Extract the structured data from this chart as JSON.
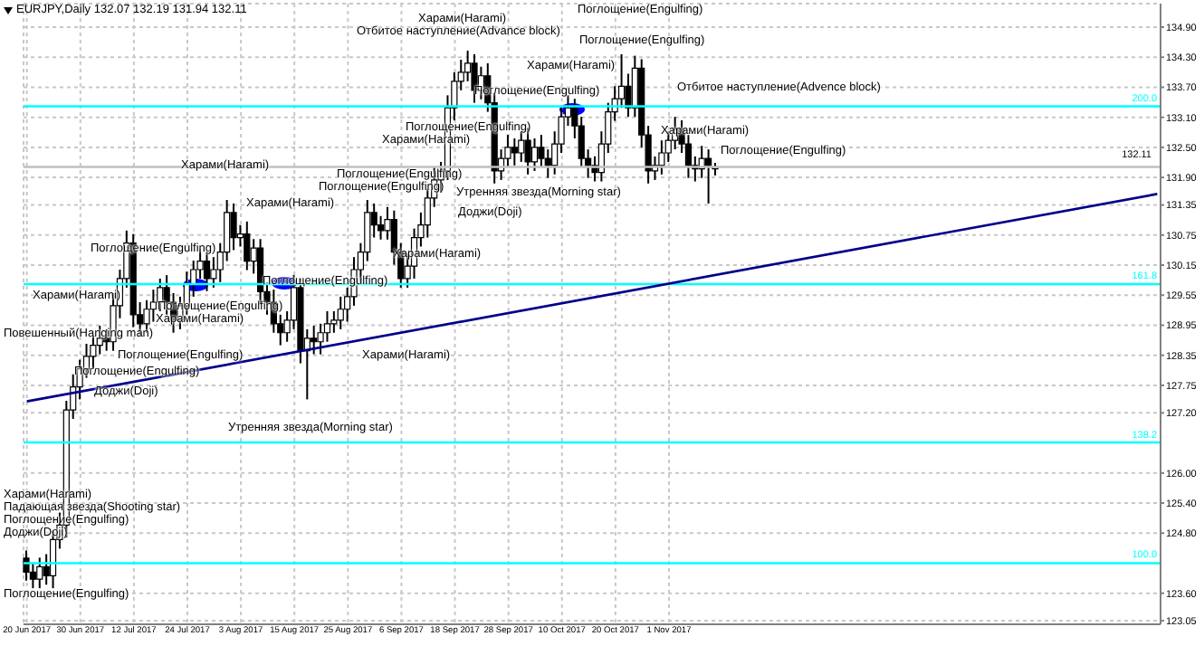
{
  "chart_data": {
    "type": "candlestick",
    "title": "EURJPY,Daily 132.07 132.19 131.94 132.11",
    "color": "#000000",
    "categories": [
      "20 Jun 2017",
      null,
      null,
      null,
      null,
      null,
      null,
      null,
      "30 Jun 2017",
      null,
      null,
      null,
      null,
      null,
      null,
      null,
      "12 Jul 2017",
      null,
      null,
      null,
      null,
      null,
      null,
      null,
      "24 Jul 2017",
      null,
      null,
      null,
      null,
      null,
      null,
      null,
      "3 Aug 2017",
      null,
      null,
      null,
      null,
      null,
      null,
      null,
      "15 Aug 2017",
      null,
      null,
      null,
      null,
      null,
      null,
      null,
      "25 Aug 2017",
      null,
      null,
      null,
      null,
      null,
      null,
      null,
      "6 Sep 2017",
      null,
      null,
      null,
      null,
      null,
      null,
      null,
      "18 Sep 2017",
      null,
      null,
      null,
      null,
      null,
      null,
      null,
      "28 Sep 2017",
      null,
      null,
      null,
      null,
      null,
      null,
      null,
      "10 Oct 2017",
      null,
      null,
      null,
      null,
      null,
      null,
      null,
      "20 Oct 2017",
      null,
      null,
      null,
      null,
      null,
      null,
      null,
      "1 Nov 2017",
      null,
      null,
      null,
      null,
      null,
      null,
      null,
      null,
      null,
      null,
      null,
      null,
      null,
      null,
      null,
      null,
      null,
      null,
      null,
      null,
      null,
      null,
      null,
      null,
      null,
      null,
      null,
      null,
      null,
      null,
      null,
      null,
      null,
      null,
      null,
      null,
      null,
      null,
      null,
      null,
      null,
      null,
      null,
      null,
      null,
      null,
      null,
      null,
      null,
      null,
      null,
      null,
      null,
      null,
      null,
      null,
      null,
      null,
      null,
      null,
      null,
      null,
      null,
      null,
      null,
      null,
      null,
      null,
      null,
      null,
      null,
      null,
      null
    ],
    "ohlc": [
      [
        124.3,
        124.45,
        123.85,
        124.02
      ],
      [
        124.02,
        124.2,
        123.7,
        123.88
      ],
      [
        123.88,
        124.31,
        123.7,
        124.13
      ],
      [
        124.13,
        124.38,
        123.77,
        123.95
      ],
      [
        123.95,
        124.85,
        123.7,
        124.67
      ],
      [
        124.67,
        125.21,
        124.49,
        124.96
      ],
      [
        124.96,
        127.44,
        124.71,
        127.26
      ],
      [
        127.26,
        127.97,
        127.08,
        127.72
      ],
      [
        127.72,
        128.26,
        127.47,
        128.08
      ],
      [
        128.08,
        128.58,
        127.9,
        128.33
      ],
      [
        128.33,
        128.73,
        128.08,
        128.55
      ],
      [
        128.55,
        128.94,
        128.37,
        128.69
      ],
      [
        128.69,
        128.87,
        128.44,
        128.62
      ],
      [
        128.62,
        129.59,
        128.44,
        129.34
      ],
      [
        129.34,
        130.06,
        129.09,
        129.88
      ],
      [
        129.88,
        130.84,
        129.7,
        130.59
      ],
      [
        130.59,
        130.77,
        128.91,
        129.16
      ],
      [
        129.16,
        129.41,
        128.73,
        128.98
      ],
      [
        128.98,
        129.45,
        128.8,
        129.27
      ],
      [
        129.27,
        129.66,
        129.02,
        129.41
      ],
      [
        129.41,
        129.88,
        129.23,
        129.7
      ],
      [
        129.7,
        129.95,
        129.16,
        129.41
      ],
      [
        129.41,
        129.59,
        128.8,
        129.05
      ],
      [
        129.05,
        129.52,
        128.87,
        129.34
      ],
      [
        129.34,
        130.02,
        129.16,
        129.77
      ],
      [
        129.77,
        130.24,
        129.52,
        130.06
      ],
      [
        130.06,
        130.48,
        129.88,
        130.23
      ],
      [
        130.23,
        130.41,
        129.63,
        129.88
      ],
      [
        129.88,
        130.31,
        129.7,
        130.06
      ],
      [
        130.06,
        130.59,
        129.81,
        130.41
      ],
      [
        130.41,
        131.45,
        130.23,
        131.2
      ],
      [
        131.2,
        131.38,
        130.45,
        130.7
      ],
      [
        130.7,
        130.95,
        130.52,
        130.77
      ],
      [
        130.77,
        131.02,
        130.05,
        130.23
      ],
      [
        130.23,
        130.67,
        129.98,
        130.49
      ],
      [
        130.49,
        130.67,
        129.37,
        129.62
      ],
      [
        129.62,
        129.8,
        129.16,
        129.41
      ],
      [
        129.41,
        129.66,
        128.8,
        128.98
      ],
      [
        128.98,
        129.16,
        128.55,
        128.8
      ],
      [
        128.8,
        129.23,
        128.62,
        129.05
      ],
      [
        129.05,
        129.95,
        128.87,
        129.7
      ],
      [
        129.7,
        129.88,
        128.19,
        128.44
      ],
      [
        128.44,
        128.87,
        127.47,
        128.69
      ],
      [
        128.69,
        128.94,
        128.37,
        128.62
      ],
      [
        128.62,
        128.98,
        128.37,
        128.8
      ],
      [
        128.8,
        129.23,
        128.62,
        128.98
      ],
      [
        128.98,
        129.23,
        128.8,
        129.05
      ],
      [
        129.05,
        129.52,
        128.87,
        129.27
      ],
      [
        129.27,
        129.7,
        129.02,
        129.52
      ],
      [
        129.52,
        130.31,
        129.34,
        130.06
      ],
      [
        130.06,
        130.59,
        129.81,
        130.41
      ],
      [
        130.41,
        131.45,
        130.23,
        131.2
      ],
      [
        131.2,
        131.38,
        130.7,
        130.95
      ],
      [
        130.95,
        131.13,
        130.66,
        130.84
      ],
      [
        130.84,
        131.31,
        130.66,
        131.06
      ],
      [
        131.06,
        131.24,
        130.16,
        130.41
      ],
      [
        130.41,
        130.59,
        129.7,
        129.88
      ],
      [
        129.88,
        130.38,
        129.7,
        130.13
      ],
      [
        130.13,
        130.88,
        129.88,
        130.7
      ],
      [
        130.7,
        131.2,
        130.52,
        130.95
      ],
      [
        130.95,
        131.67,
        130.7,
        131.49
      ],
      [
        131.49,
        132.1,
        131.31,
        131.85
      ],
      [
        131.85,
        132.21,
        131.6,
        132.03
      ],
      [
        132.03,
        133.54,
        131.85,
        133.29
      ],
      [
        133.29,
        134.0,
        133.04,
        133.82
      ],
      [
        133.82,
        134.25,
        133.64,
        134.0
      ],
      [
        134.0,
        134.43,
        133.82,
        134.18
      ],
      [
        134.18,
        134.36,
        133.39,
        133.64
      ],
      [
        133.64,
        134.11,
        133.46,
        133.93
      ],
      [
        133.93,
        134.18,
        133.21,
        133.39
      ],
      [
        133.39,
        133.57,
        131.78,
        132.03
      ],
      [
        132.03,
        132.46,
        131.85,
        132.28
      ],
      [
        132.28,
        132.75,
        132.1,
        132.5
      ],
      [
        132.5,
        132.68,
        132.14,
        132.39
      ],
      [
        132.39,
        132.82,
        132.21,
        132.64
      ],
      [
        132.64,
        132.89,
        131.96,
        132.21
      ],
      [
        132.21,
        132.68,
        132.03,
        132.5
      ],
      [
        132.5,
        132.75,
        132.1,
        132.28
      ],
      [
        132.28,
        132.46,
        131.89,
        132.14
      ],
      [
        132.14,
        132.82,
        131.96,
        132.57
      ],
      [
        132.57,
        133.29,
        132.39,
        133.11
      ],
      [
        133.11,
        133.54,
        132.93,
        133.29
      ],
      [
        133.29,
        133.47,
        132.68,
        132.93
      ],
      [
        132.93,
        133.11,
        132.1,
        132.28
      ],
      [
        132.28,
        132.46,
        131.89,
        132.14
      ],
      [
        132.14,
        132.32,
        131.82,
        132.0
      ],
      [
        132.0,
        132.82,
        131.82,
        132.57
      ],
      [
        132.57,
        133.39,
        132.39,
        133.21
      ],
      [
        133.21,
        133.72,
        133.03,
        133.47
      ],
      [
        133.47,
        134.36,
        133.29,
        133.72
      ],
      [
        133.72,
        133.97,
        133.11,
        133.29
      ],
      [
        133.29,
        134.33,
        133.11,
        134.08
      ],
      [
        134.08,
        134.26,
        132.5,
        132.75
      ],
      [
        132.75,
        132.93,
        131.78,
        132.03
      ],
      [
        132.03,
        132.32,
        131.85,
        132.14
      ],
      [
        132.14,
        132.64,
        131.96,
        132.39
      ],
      [
        132.39,
        132.82,
        132.21,
        132.64
      ],
      [
        132.64,
        133.11,
        132.46,
        132.86
      ],
      [
        132.86,
        133.04,
        132.39,
        132.57
      ],
      [
        132.57,
        132.75,
        131.89,
        132.14
      ],
      [
        132.14,
        132.32,
        131.82,
        132.07
      ],
      [
        132.07,
        132.53,
        131.89,
        132.28
      ],
      [
        132.28,
        132.46,
        131.38,
        132.14
      ],
      [
        132.07,
        132.19,
        131.94,
        132.11
      ],
      null,
      null,
      null,
      null,
      null,
      null,
      null,
      null,
      null,
      null,
      null,
      null,
      null,
      null,
      null,
      null,
      null,
      null,
      null,
      null,
      null,
      null,
      null,
      null,
      null,
      null,
      null,
      null,
      null,
      null,
      null,
      null,
      null,
      null,
      null,
      null,
      null,
      null,
      null,
      null,
      null,
      null,
      null,
      null,
      null,
      null,
      null,
      null,
      null,
      null,
      null,
      null,
      null,
      null,
      null,
      null,
      null,
      null,
      null,
      null,
      null,
      null,
      null,
      null,
      null,
      null
    ],
    "series": [
      {
        "type": "line",
        "color": "#00008b",
        "values": [
          127.43,
          null,
          null,
          null,
          null,
          null,
          null,
          null,
          null,
          null,
          null,
          null,
          null,
          null,
          null,
          null,
          null,
          null,
          null,
          null,
          null,
          null,
          null,
          null,
          null,
          null,
          null,
          null,
          null,
          null,
          null,
          null,
          null,
          null,
          null,
          null,
          null,
          null,
          null,
          null,
          null,
          null,
          null,
          null,
          null,
          null,
          null,
          null,
          null,
          null,
          null,
          null,
          null,
          null,
          null,
          null,
          null,
          null,
          null,
          null,
          null,
          null,
          null,
          null,
          null,
          null,
          null,
          null,
          null,
          null,
          null,
          null,
          null,
          null,
          null,
          null,
          null,
          null,
          null,
          null,
          null,
          null,
          null,
          null,
          null,
          null,
          null,
          null,
          null,
          null,
          null,
          null,
          null,
          null,
          null,
          null,
          null,
          null,
          null,
          null,
          null,
          null,
          null,
          null,
          null,
          null,
          null,
          null,
          null,
          null,
          null,
          null,
          null,
          null,
          null,
          null,
          null,
          null,
          null,
          null,
          null,
          null,
          null,
          null,
          null,
          null,
          null,
          null,
          null,
          null,
          null,
          null,
          null,
          null,
          null,
          null,
          null,
          null,
          null,
          null,
          null,
          null,
          null,
          null,
          null,
          null,
          null,
          null,
          null,
          null,
          null,
          null,
          null,
          null,
          null,
          null,
          null,
          null,
          null,
          null,
          null,
          null,
          null,
          null,
          null,
          null,
          null,
          null,
          null,
          131.57
        ]
      }
    ],
    "ylim": [
      122.98,
      135.37
    ],
    "yticks": [
      {
        "value": 134.9,
        "label": "134.90"
      },
      {
        "value": 134.3,
        "label": "134.30"
      },
      {
        "value": 133.7,
        "label": "133.70"
      },
      {
        "value": 133.1,
        "label": "133.10"
      },
      {
        "value": 132.5,
        "label": "132.50"
      },
      {
        "value": 131.9,
        "label": "131.90"
      },
      {
        "value": 131.35,
        "label": "131.35"
      },
      {
        "value": 130.75,
        "label": "130.75"
      },
      {
        "value": 130.15,
        "label": "130.15"
      },
      {
        "value": 129.55,
        "label": "129.55"
      },
      {
        "value": 128.95,
        "label": "128.95"
      },
      {
        "value": 128.35,
        "label": "128.35"
      },
      {
        "value": 127.75,
        "label": "127.75"
      },
      {
        "value": 127.2,
        "label": "127.20"
      },
      {
        "value": 126,
        "label": "126.00"
      },
      {
        "value": 125.4,
        "label": "125.40"
      },
      {
        "value": 124.8,
        "label": "124.80"
      },
      {
        "value": 123.6,
        "label": "123.60"
      },
      {
        "value": 123.05,
        "label": "123.05"
      }
    ],
    "grid": true,
    "ref_lines": [
      {
        "axis": "y",
        "value": 133.32,
        "color": "#00ffff"
      },
      {
        "axis": "y",
        "value": 129.77,
        "color": "#00ffff"
      },
      {
        "axis": "y",
        "value": 126.61,
        "color": "#00ffff"
      },
      {
        "axis": "y",
        "value": 124.2,
        "color": "#00ffff"
      },
      {
        "axis": "y",
        "value": 132.11,
        "label": "132.11",
        "color": "#c0c0c0"
      }
    ],
    "annotations": [
      "Харами(Harami)",
      "Харами(Harami)",
      "Поглощение(Engulfing)",
      "Поглощение(Engulfing)",
      "Харами(Harami)",
      "Поглощение(Engulfing)",
      "Харами(Harami)",
      "Повешенный(Hanging man)",
      "Поглощение(Engulfing)",
      "Поглощение(Engulfing)",
      "Доджи(Doji)",
      "Утренняя звезда(Morning star)",
      "Харами(Harami)",
      "Харами(Harami)",
      "Падающая звезда(Shooting star)",
      "Поглощение(Engulfing)",
      "Доджи(Doji)",
      "Поглощение(Engulfing)",
      "Харами(Harami)",
      "Отбитое наступление(Advance block)",
      "Поглощение(Engulfing)",
      "Поглощение(Engulfing)",
      "Харами(Harami)",
      "Отбитое наступление(Advence block)",
      "Поглощение(Engulfing)",
      "Поглощение(Engulfing)",
      "Харами(Harami)",
      "Харами(Harami)",
      "Поглощение(Engulfing)",
      "Поглощение(Engulfing)",
      "Поглощение(Engulfing)",
      "Утренняя звезда(Morning star)",
      "Доджи(Doji)",
      "Харами(Harami)",
      {
        "text": "200.0",
        "y": 133.32
      },
      {
        "text": "161.8",
        "y": 129.77
      },
      {
        "text": "138.2",
        "y": 126.61
      },
      {
        "text": "100.0",
        "y": 124.2
      }
    ]
  }
}
